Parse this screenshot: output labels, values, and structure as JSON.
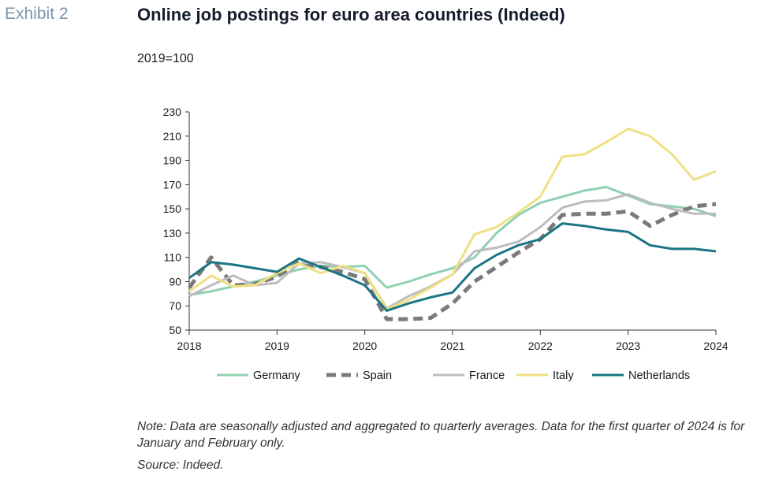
{
  "header": {
    "exhibit": "Exhibit 2",
    "title": "Online job postings for euro area countries (Indeed)",
    "subtitle": "2019=100"
  },
  "footer": {
    "note": "Note: Data are seasonally adjusted and aggregated to quarterly averages. Data for the first quarter of 2024 is for January and February only.",
    "source": "Source: Indeed."
  },
  "chart_data": {
    "type": "line",
    "title": "Online job postings for euro area countries (Indeed)",
    "ylabel": "2019=100",
    "xlabel": "",
    "xlim": [
      2018,
      2024
    ],
    "ylim": [
      50,
      230
    ],
    "x_ticks": [
      2018,
      2019,
      2020,
      2021,
      2022,
      2023,
      2024
    ],
    "y_ticks": [
      50,
      70,
      90,
      110,
      130,
      150,
      170,
      190,
      210,
      230
    ],
    "grid": false,
    "legend_position": "bottom",
    "x": [
      2018,
      2018.25,
      2018.5,
      2018.75,
      2019,
      2019.25,
      2019.5,
      2019.75,
      2020,
      2020.25,
      2020.5,
      2020.75,
      2021,
      2021.25,
      2021.5,
      2021.75,
      2022,
      2022.25,
      2022.5,
      2022.75,
      2023,
      2023.25,
      2023.5,
      2023.75,
      2024
    ],
    "series": [
      {
        "name": "Germany",
        "color": "#8fd1b0",
        "dash": "solid",
        "values": [
          79,
          82,
          86,
          90,
          95,
          100,
          103,
          102,
          103,
          85,
          90,
          96,
          101,
          110,
          130,
          145,
          155,
          160,
          165,
          168,
          161,
          154,
          152,
          150,
          144
        ]
      },
      {
        "name": "Spain",
        "color": "#7a7a7a",
        "dash": "dashed",
        "values": [
          85,
          110,
          87,
          88,
          94,
          106,
          102,
          98,
          92,
          59,
          59,
          60,
          72,
          90,
          102,
          114,
          125,
          145,
          146,
          146,
          148,
          136,
          145,
          152,
          154
        ]
      },
      {
        "name": "France",
        "color": "#bdbdbd",
        "dash": "solid",
        "values": [
          78,
          87,
          95,
          87,
          89,
          105,
          106,
          102,
          97,
          68,
          78,
          86,
          96,
          115,
          118,
          123,
          135,
          151,
          156,
          157,
          162,
          155,
          150,
          146,
          146
        ]
      },
      {
        "name": "Italy",
        "color": "#efe083",
        "dash": "solid",
        "values": [
          82,
          95,
          86,
          87,
          97,
          105,
          97,
          103,
          97,
          67,
          75,
          85,
          96,
          129,
          135,
          147,
          160,
          193,
          195,
          205,
          216,
          210,
          195,
          174,
          181
        ]
      },
      {
        "name": "Netherlands",
        "color": "#1b7583",
        "dash": "solid",
        "values": [
          93,
          106,
          104,
          101,
          98,
          109,
          102,
          95,
          87,
          66,
          72,
          77,
          81,
          101,
          112,
          120,
          125,
          138,
          136,
          133,
          131,
          120,
          117,
          117,
          115
        ]
      }
    ]
  }
}
